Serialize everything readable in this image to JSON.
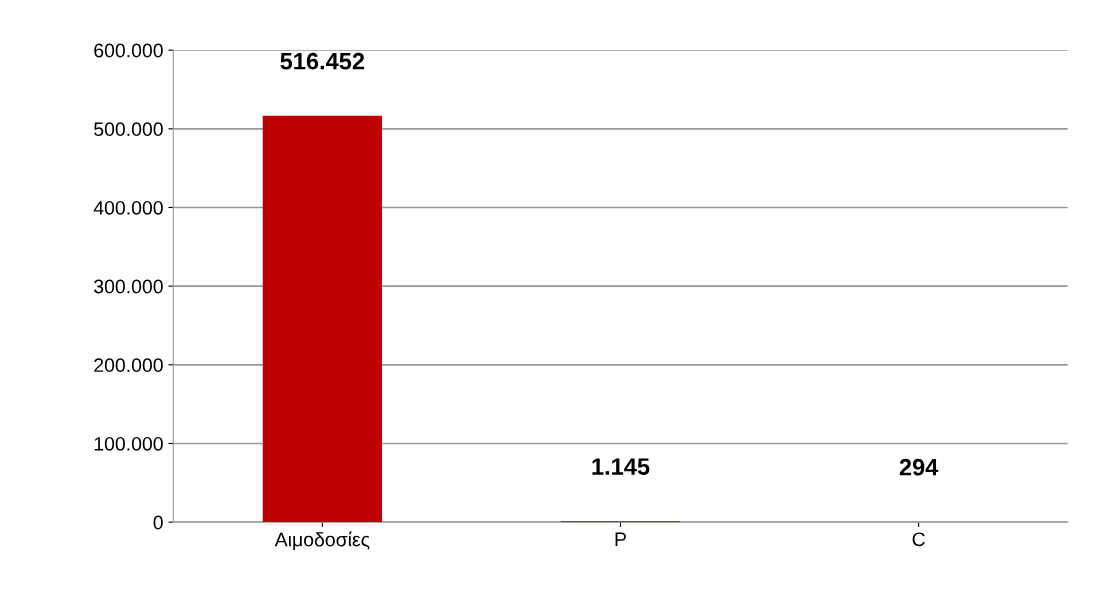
{
  "chart_data": {
    "type": "bar",
    "categories": [
      "Αιμοδοσίες",
      "P",
      "C"
    ],
    "values": [
      516452,
      1145,
      294
    ],
    "colors": [
      "#c00000",
      "#3b4a1f",
      "#c09000"
    ],
    "value_labels": [
      "516.452",
      "1.145",
      "294"
    ],
    "ylim": [
      0,
      600000
    ],
    "yticks": [
      {
        "value": 0,
        "label": "0"
      },
      {
        "value": 100000,
        "label": "100.000"
      },
      {
        "value": 200000,
        "label": "200.000"
      },
      {
        "value": 300000,
        "label": "300.000"
      },
      {
        "value": 400000,
        "label": "400.000"
      },
      {
        "value": 500000,
        "label": "500.000"
      },
      {
        "value": 600000,
        "label": "600.000"
      }
    ],
    "grid": "y",
    "legend": false
  }
}
